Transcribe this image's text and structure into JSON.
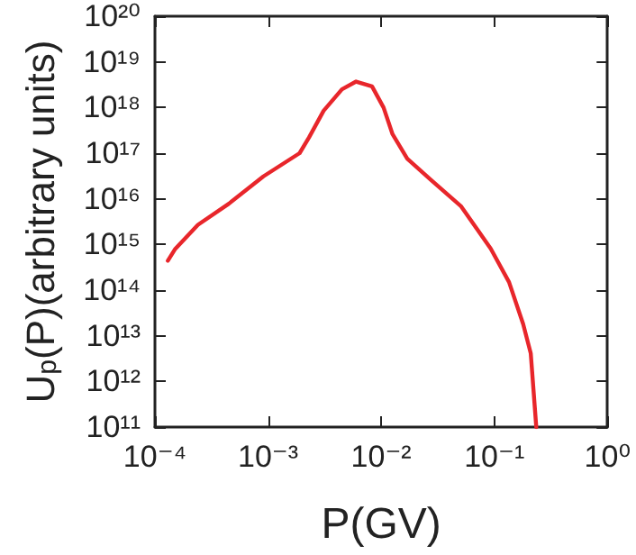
{
  "chart_data": {
    "type": "line",
    "xlabel": "P(GV)",
    "ylabel": "U$_{p}$(P)(arbitrary units)",
    "log": "xy",
    "grid": false,
    "marker": "none",
    "line_style": "solid",
    "xlim": [
      0.0001,
      1
    ],
    "ylim": [
      100000000000.0,
      1e+20
    ],
    "xticks": [
      {
        "value": 0.0001,
        "label": "10⁻⁴"
      },
      {
        "value": 0.001,
        "label": "10⁻³"
      },
      {
        "value": 0.01,
        "label": "10⁻²"
      },
      {
        "value": 0.1,
        "label": "10⁻¹"
      },
      {
        "value": 1,
        "label": "10⁰"
      }
    ],
    "yticks": [
      {
        "value": 100000000000.0,
        "label": "10¹¹"
      },
      {
        "value": 1000000000000.0,
        "label": "10¹²"
      },
      {
        "value": 10000000000000.0,
        "label": "10¹³"
      },
      {
        "value": 100000000000000.0,
        "label": "10¹⁴"
      },
      {
        "value": 1000000000000000.0,
        "label": "10¹⁵"
      },
      {
        "value": 1e+16,
        "label": "10¹⁶"
      },
      {
        "value": 1e+17,
        "label": "10¹⁷"
      },
      {
        "value": 1e+18,
        "label": "10¹⁸"
      },
      {
        "value": 1e+19,
        "label": "10¹⁹"
      },
      {
        "value": 1e+20,
        "label": "10²⁰"
      }
    ],
    "x": [
      0.00013,
      0.00015,
      0.00024,
      0.00045,
      0.00091,
      0.0019,
      0.0023,
      0.0031,
      0.0045,
      0.006,
      0.0083,
      0.0105,
      0.0126,
      0.017,
      0.0275,
      0.051,
      0.093,
      0.135,
      0.18,
      0.21,
      0.235
    ],
    "series": [
      {
        "color": "#e8262b",
        "values": [
          440000000000000.0,
          780000000000000.0,
          2700000000000000.0,
          7800000000000000.0,
          3.1e+16,
          1e+17,
          2.2e+17,
          8.5e+17,
          2.5e+18,
          3.7e+18,
          2.9e+18,
          1e+18,
          2.6e+17,
          7.6e+16,
          2.6e+16,
          6800000000000000.0,
          810000000000000.0,
          150000000000000.0,
          18000000000000.0,
          4100000000000.0,
          100000000000.0
        ]
      }
    ]
  }
}
